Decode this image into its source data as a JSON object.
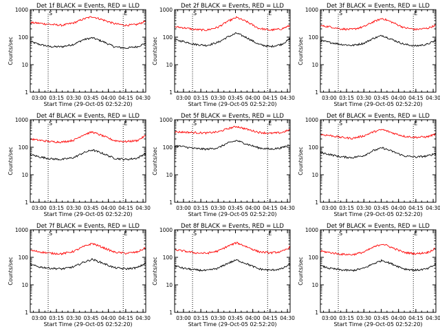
{
  "xtick_labels": [
    "03:00",
    "03:15",
    "03:30",
    "03:45",
    "04:00",
    "04:15",
    "04:30"
  ],
  "ytick_labels": [
    "1",
    "10",
    "100",
    "1000"
  ],
  "xlabel": "Start Time (29-Oct-05 02:52:20)",
  "ylabel": "Counts/sec",
  "event_markers": [
    "S",
    "E"
  ],
  "colors": {
    "events": "#000000",
    "lld": "#ff0000",
    "axes": "#000000",
    "background": "#ffffff"
  },
  "chart_data": [
    {
      "type": "line",
      "title": "Det 1f BLACK = Events, RED = LLD",
      "x_range": [
        "02:52:20",
        "04:32:20"
      ],
      "ylim": [
        1,
        1000
      ],
      "yscale": "log",
      "grid": false,
      "markers": [
        {
          "label": "S",
          "x": "03:07:50"
        },
        {
          "label": "E",
          "x": "04:12:50"
        }
      ],
      "series": [
        {
          "name": "Events",
          "color": "#000000",
          "x": [
            "02:52",
            "03:00",
            "03:10",
            "03:20",
            "03:30",
            "03:38",
            "03:46",
            "03:55",
            "04:05",
            "04:15",
            "04:25",
            "04:32"
          ],
          "values": [
            70,
            55,
            45,
            45,
            55,
            80,
            95,
            70,
            45,
            40,
            45,
            60
          ]
        },
        {
          "name": "LLD",
          "color": "#ff0000",
          "x": [
            "02:52",
            "03:00",
            "03:10",
            "03:20",
            "03:30",
            "03:38",
            "03:46",
            "03:55",
            "04:05",
            "04:15",
            "04:25",
            "04:32"
          ],
          "values": [
            340,
            320,
            290,
            270,
            330,
            450,
            560,
            430,
            310,
            270,
            290,
            380
          ]
        }
      ]
    },
    {
      "type": "line",
      "title": "Det 2f BLACK = Events, RED = LLD",
      "x_range": [
        "02:52:20",
        "04:32:20"
      ],
      "ylim": [
        1,
        1000
      ],
      "yscale": "log",
      "grid": false,
      "markers": [
        {
          "label": "S",
          "x": "03:07:50"
        },
        {
          "label": "E",
          "x": "04:12:50"
        }
      ],
      "series": [
        {
          "name": "Events",
          "color": "#000000",
          "x": [
            "02:52",
            "03:00",
            "03:10",
            "03:20",
            "03:30",
            "03:38",
            "03:46",
            "03:55",
            "04:05",
            "04:15",
            "04:25",
            "04:32"
          ],
          "values": [
            80,
            70,
            55,
            50,
            65,
            100,
            140,
            95,
            55,
            45,
            55,
            85
          ]
        },
        {
          "name": "LLD",
          "color": "#ff0000",
          "x": [
            "02:52",
            "03:00",
            "03:10",
            "03:20",
            "03:30",
            "03:38",
            "03:46",
            "03:55",
            "04:05",
            "04:15",
            "04:25",
            "04:32"
          ],
          "values": [
            240,
            220,
            190,
            180,
            230,
            370,
            520,
            360,
            210,
            180,
            200,
            260
          ]
        }
      ]
    },
    {
      "type": "line",
      "title": "Det 3f BLACK = Events, RED = LLD",
      "x_range": [
        "02:52:20",
        "04:32:20"
      ],
      "ylim": [
        1,
        1000
      ],
      "yscale": "log",
      "grid": false,
      "markers": [
        {
          "label": "S",
          "x": "03:07:50"
        },
        {
          "label": "E",
          "x": "04:12:50"
        }
      ],
      "series": [
        {
          "name": "Events",
          "color": "#000000",
          "x": [
            "02:52",
            "03:00",
            "03:10",
            "03:20",
            "03:30",
            "03:38",
            "03:46",
            "03:55",
            "04:05",
            "04:15",
            "04:25",
            "04:32"
          ],
          "values": [
            75,
            65,
            55,
            50,
            60,
            90,
            115,
            80,
            55,
            48,
            55,
            75
          ]
        },
        {
          "name": "LLD",
          "color": "#ff0000",
          "x": [
            "02:52",
            "03:00",
            "03:10",
            "03:20",
            "03:30",
            "03:38",
            "03:46",
            "03:55",
            "04:05",
            "04:15",
            "04:25",
            "04:32"
          ],
          "values": [
            260,
            240,
            200,
            190,
            240,
            360,
            480,
            340,
            220,
            190,
            210,
            270
          ]
        }
      ]
    },
    {
      "type": "line",
      "title": "Det 4f BLACK = Events, RED = LLD",
      "x_range": [
        "02:52:20",
        "04:32:20"
      ],
      "ylim": [
        1,
        1000
      ],
      "yscale": "log",
      "grid": false,
      "markers": [
        {
          "label": "S",
          "x": "03:07:50"
        },
        {
          "label": "E",
          "x": "04:12:50"
        }
      ],
      "series": [
        {
          "name": "Events",
          "color": "#000000",
          "x": [
            "02:52",
            "03:00",
            "03:10",
            "03:20",
            "03:30",
            "03:38",
            "03:46",
            "03:55",
            "04:05",
            "04:15",
            "04:25",
            "04:32"
          ],
          "values": [
            55,
            45,
            38,
            36,
            42,
            62,
            80,
            60,
            40,
            36,
            40,
            60
          ]
        },
        {
          "name": "LLD",
          "color": "#ff0000",
          "x": [
            "02:52",
            "03:00",
            "03:10",
            "03:20",
            "03:30",
            "03:38",
            "03:46",
            "03:55",
            "04:05",
            "04:15",
            "04:25",
            "04:32"
          ],
          "values": [
            200,
            180,
            160,
            155,
            180,
            280,
            360,
            260,
            175,
            160,
            175,
            260
          ]
        }
      ]
    },
    {
      "type": "line",
      "title": "Det 5f BLACK = Events, RED = LLD",
      "x_range": [
        "02:52:20",
        "04:32:20"
      ],
      "ylim": [
        1,
        1000
      ],
      "yscale": "log",
      "grid": false,
      "markers": [
        {
          "label": "S",
          "x": "03:07:50"
        },
        {
          "label": "E",
          "x": "04:12:50"
        }
      ],
      "series": [
        {
          "name": "Events",
          "color": "#000000",
          "x": [
            "02:52",
            "03:00",
            "03:10",
            "03:20",
            "03:30",
            "03:38",
            "03:46",
            "03:55",
            "04:05",
            "04:15",
            "04:25",
            "04:32"
          ],
          "values": [
            115,
            105,
            90,
            85,
            95,
            140,
            175,
            130,
            95,
            85,
            95,
            125
          ]
        },
        {
          "name": "LLD",
          "color": "#ff0000",
          "x": [
            "02:52",
            "03:00",
            "03:10",
            "03:20",
            "03:30",
            "03:38",
            "03:46",
            "03:55",
            "04:05",
            "04:15",
            "04:25",
            "04:32"
          ],
          "values": [
            360,
            355,
            340,
            330,
            360,
            470,
            570,
            450,
            350,
            320,
            340,
            430
          ]
        }
      ]
    },
    {
      "type": "line",
      "title": "Det 6f BLACK = Events, RED = LLD",
      "x_range": [
        "02:52:20",
        "04:32:20"
      ],
      "ylim": [
        1,
        1000
      ],
      "yscale": "log",
      "grid": false,
      "markers": [
        {
          "label": "S",
          "x": "03:07:50"
        },
        {
          "label": "E",
          "x": "04:12:50"
        }
      ],
      "series": [
        {
          "name": "Events",
          "color": "#000000",
          "x": [
            "02:52",
            "03:00",
            "03:10",
            "03:20",
            "03:30",
            "03:38",
            "03:46",
            "03:55",
            "04:05",
            "04:15",
            "04:25",
            "04:32"
          ],
          "values": [
            65,
            55,
            45,
            42,
            50,
            75,
            95,
            70,
            48,
            44,
            48,
            60
          ]
        },
        {
          "name": "LLD",
          "color": "#ff0000",
          "x": [
            "02:52",
            "03:00",
            "03:10",
            "03:20",
            "03:30",
            "03:38",
            "03:46",
            "03:55",
            "04:05",
            "04:15",
            "04:25",
            "04:32"
          ],
          "values": [
            290,
            270,
            230,
            210,
            260,
            360,
            440,
            330,
            250,
            230,
            240,
            300
          ]
        }
      ]
    },
    {
      "type": "line",
      "title": "Det 7f BLACK = Events, RED = LLD",
      "x_range": [
        "02:52:20",
        "04:32:20"
      ],
      "ylim": [
        1,
        1000
      ],
      "yscale": "log",
      "grid": false,
      "markers": [
        {
          "label": "S",
          "x": "03:07:50"
        },
        {
          "label": "E",
          "x": "04:12:50"
        }
      ],
      "series": [
        {
          "name": "Events",
          "color": "#000000",
          "x": [
            "02:52",
            "03:00",
            "03:10",
            "03:20",
            "03:30",
            "03:38",
            "03:46",
            "03:55",
            "04:05",
            "04:15",
            "04:25",
            "04:32"
          ],
          "values": [
            55,
            45,
            40,
            38,
            45,
            65,
            85,
            62,
            42,
            38,
            42,
            60
          ]
        },
        {
          "name": "LLD",
          "color": "#ff0000",
          "x": [
            "02:52",
            "03:00",
            "03:10",
            "03:20",
            "03:30",
            "03:38",
            "03:46",
            "03:55",
            "04:05",
            "04:15",
            "04:25",
            "04:32"
          ],
          "values": [
            180,
            160,
            140,
            135,
            165,
            240,
            320,
            230,
            155,
            140,
            155,
            220
          ]
        }
      ]
    },
    {
      "type": "line",
      "title": "Det 8f BLACK = Events, RED = LLD",
      "x_range": [
        "02:52:20",
        "04:32:20"
      ],
      "ylim": [
        1,
        1000
      ],
      "yscale": "log",
      "grid": false,
      "markers": [
        {
          "label": "S",
          "x": "03:07:50"
        },
        {
          "label": "E",
          "x": "04:12:50"
        }
      ],
      "series": [
        {
          "name": "Events",
          "color": "#000000",
          "x": [
            "02:52",
            "03:00",
            "03:10",
            "03:20",
            "03:30",
            "03:38",
            "03:46",
            "03:55",
            "04:05",
            "04:15",
            "04:25",
            "04:32"
          ],
          "values": [
            50,
            40,
            35,
            33,
            40,
            60,
            80,
            58,
            38,
            34,
            38,
            55
          ]
        },
        {
          "name": "LLD",
          "color": "#ff0000",
          "x": [
            "02:52",
            "03:00",
            "03:10",
            "03:20",
            "03:30",
            "03:38",
            "03:46",
            "03:55",
            "04:05",
            "04:15",
            "04:25",
            "04:32"
          ],
          "values": [
            190,
            170,
            145,
            140,
            170,
            250,
            340,
            240,
            160,
            145,
            160,
            230
          ]
        }
      ]
    },
    {
      "type": "line",
      "title": "Det 9f BLACK = Events, RED = LLD",
      "x_range": [
        "02:52:20",
        "04:32:20"
      ],
      "ylim": [
        1,
        1000
      ],
      "yscale": "log",
      "grid": false,
      "markers": [
        {
          "label": "S",
          "x": "03:07:50"
        },
        {
          "label": "E",
          "x": "04:12:50"
        }
      ],
      "series": [
        {
          "name": "Events",
          "color": "#000000",
          "x": [
            "02:52",
            "03:00",
            "03:10",
            "03:20",
            "03:30",
            "03:38",
            "03:46",
            "03:55",
            "04:05",
            "04:15",
            "04:25",
            "04:32"
          ],
          "values": [
            50,
            40,
            35,
            33,
            40,
            58,
            78,
            56,
            38,
            34,
            38,
            55
          ]
        },
        {
          "name": "LLD",
          "color": "#ff0000",
          "x": [
            "02:52",
            "03:00",
            "03:10",
            "03:20",
            "03:30",
            "03:38",
            "03:46",
            "03:55",
            "04:05",
            "04:15",
            "04:25",
            "04:32"
          ],
          "values": [
            170,
            150,
            130,
            125,
            155,
            230,
            310,
            220,
            150,
            135,
            150,
            210
          ]
        }
      ]
    }
  ]
}
